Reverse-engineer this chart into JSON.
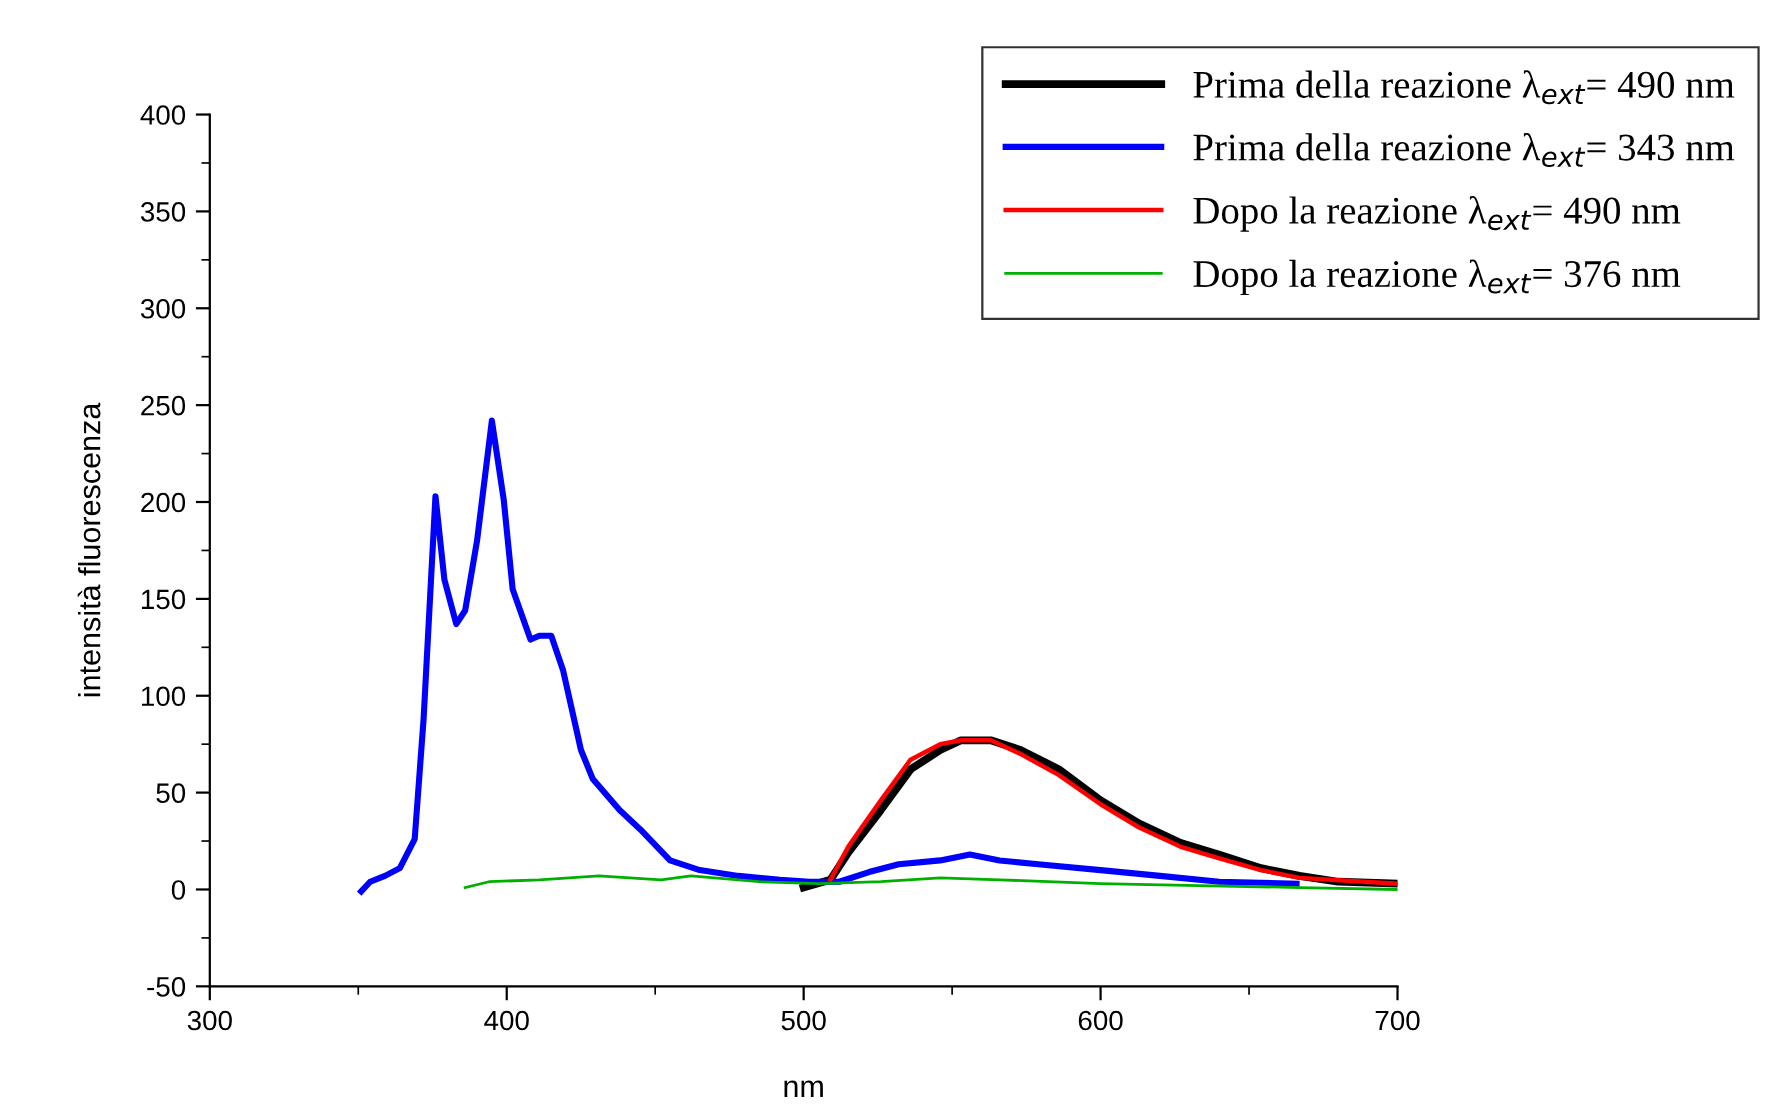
{
  "chart_data": {
    "type": "line",
    "xlabel": "nm",
    "ylabel": "intensità fluorescenza",
    "xlim": [
      300,
      700
    ],
    "ylim": [
      -50,
      400
    ],
    "xticks": [
      300,
      400,
      500,
      600,
      700
    ],
    "yticks": [
      -50,
      0,
      50,
      100,
      150,
      200,
      250,
      300,
      350,
      400
    ],
    "grid": false,
    "legend": "top right",
    "marker": "none",
    "line_style": "solid",
    "series": [
      {
        "name": "Prima della reazione λ$_{ext}$= 490 nm",
        "color": "#000000",
        "x": [
          500,
          509,
          515,
          526,
          536,
          546,
          553,
          563,
          573,
          586,
          600,
          613,
          627,
          640,
          654,
          667,
          680,
          700
        ],
        "values": [
          1,
          5,
          19,
          41,
          62,
          72,
          77,
          77,
          72,
          62,
          46,
          34,
          24,
          18,
          11,
          7,
          4,
          3
        ]
      },
      {
        "name": "Prima della reazione λ$_{ext}$= 343 nm",
        "color": "#0000ff",
        "x": [
          351,
          354,
          359,
          364,
          369,
          372,
          376,
          379,
          383,
          386,
          390,
          395,
          399,
          402,
          408,
          411,
          415,
          419,
          425,
          429,
          438,
          445,
          455,
          465,
          478,
          492,
          502,
          512,
          522,
          532,
          546,
          556,
          566,
          579,
          600,
          620,
          640,
          666
        ],
        "values": [
          -1,
          4,
          7,
          11,
          26,
          88,
          203,
          160,
          137,
          144,
          180,
          242,
          201,
          155,
          129,
          131,
          131,
          113,
          72,
          57,
          41,
          31,
          15,
          10,
          7,
          5,
          4,
          4,
          9,
          13,
          15,
          18,
          15,
          13,
          10,
          7,
          4,
          3
        ]
      },
      {
        "name": "Dopo la reazione λ$_{ext}$= 490 nm",
        "color": "#ff0000",
        "x": [
          509,
          515,
          526,
          536,
          546,
          553,
          563,
          573,
          586,
          600,
          613,
          627,
          640,
          654,
          667,
          700
        ],
        "values": [
          5,
          22,
          46,
          67,
          75,
          77,
          77,
          70,
          59,
          44,
          32,
          22,
          16,
          10,
          6,
          3
        ]
      },
      {
        "name": "Dopo la reazione λ$_{ext}$= 376 nm",
        "color": "#00b000",
        "x": [
          386,
          394,
          411,
          431,
          452,
          462,
          485,
          505,
          526,
          546,
          566,
          600,
          633,
          667,
          700
        ],
        "values": [
          1,
          4,
          5,
          7,
          5,
          7,
          4,
          3,
          4,
          6,
          5,
          3,
          2,
          1,
          0
        ]
      }
    ]
  }
}
